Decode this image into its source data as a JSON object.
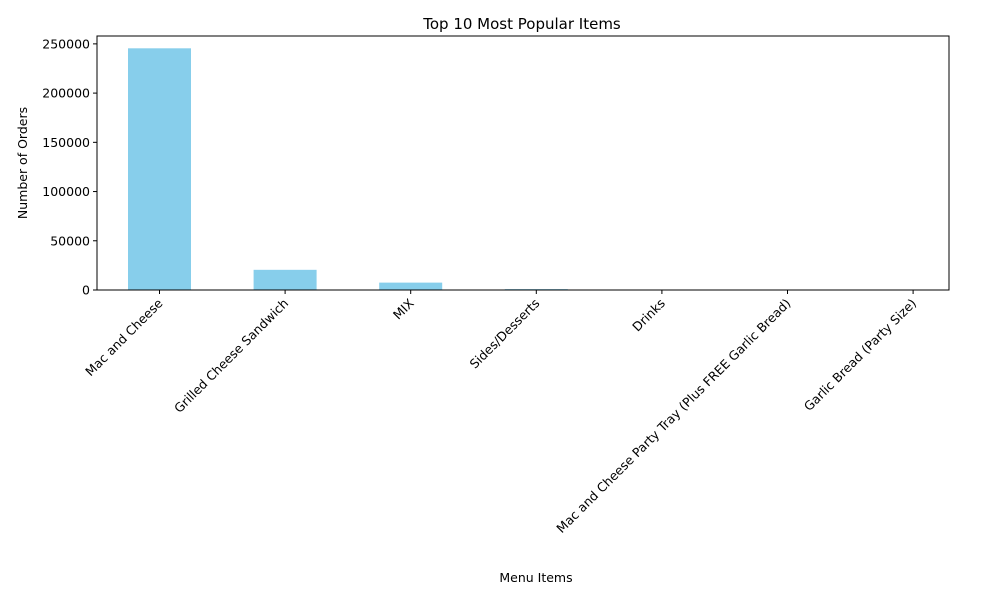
{
  "chart_data": {
    "type": "bar",
    "title": "Top 10 Most Popular Items",
    "xlabel": "Menu Items",
    "ylabel": "Number of Orders",
    "categories": [
      "Mac and Cheese",
      "Grilled Cheese Sandwich",
      "MIX",
      "Sides/Desserts",
      "Drinks",
      "Mac and Cheese Party Tray (Plus FREE Garlic Bread)",
      "Garlic Bread (Party Size)"
    ],
    "values": [
      245500,
      20500,
      7500,
      900,
      250,
      120,
      80
    ],
    "ylim": [
      0,
      258000
    ],
    "yticks": [
      0,
      50000,
      100000,
      150000,
      200000,
      250000
    ],
    "bar_color": "#87ceeb",
    "grid": false,
    "legend": "none"
  }
}
